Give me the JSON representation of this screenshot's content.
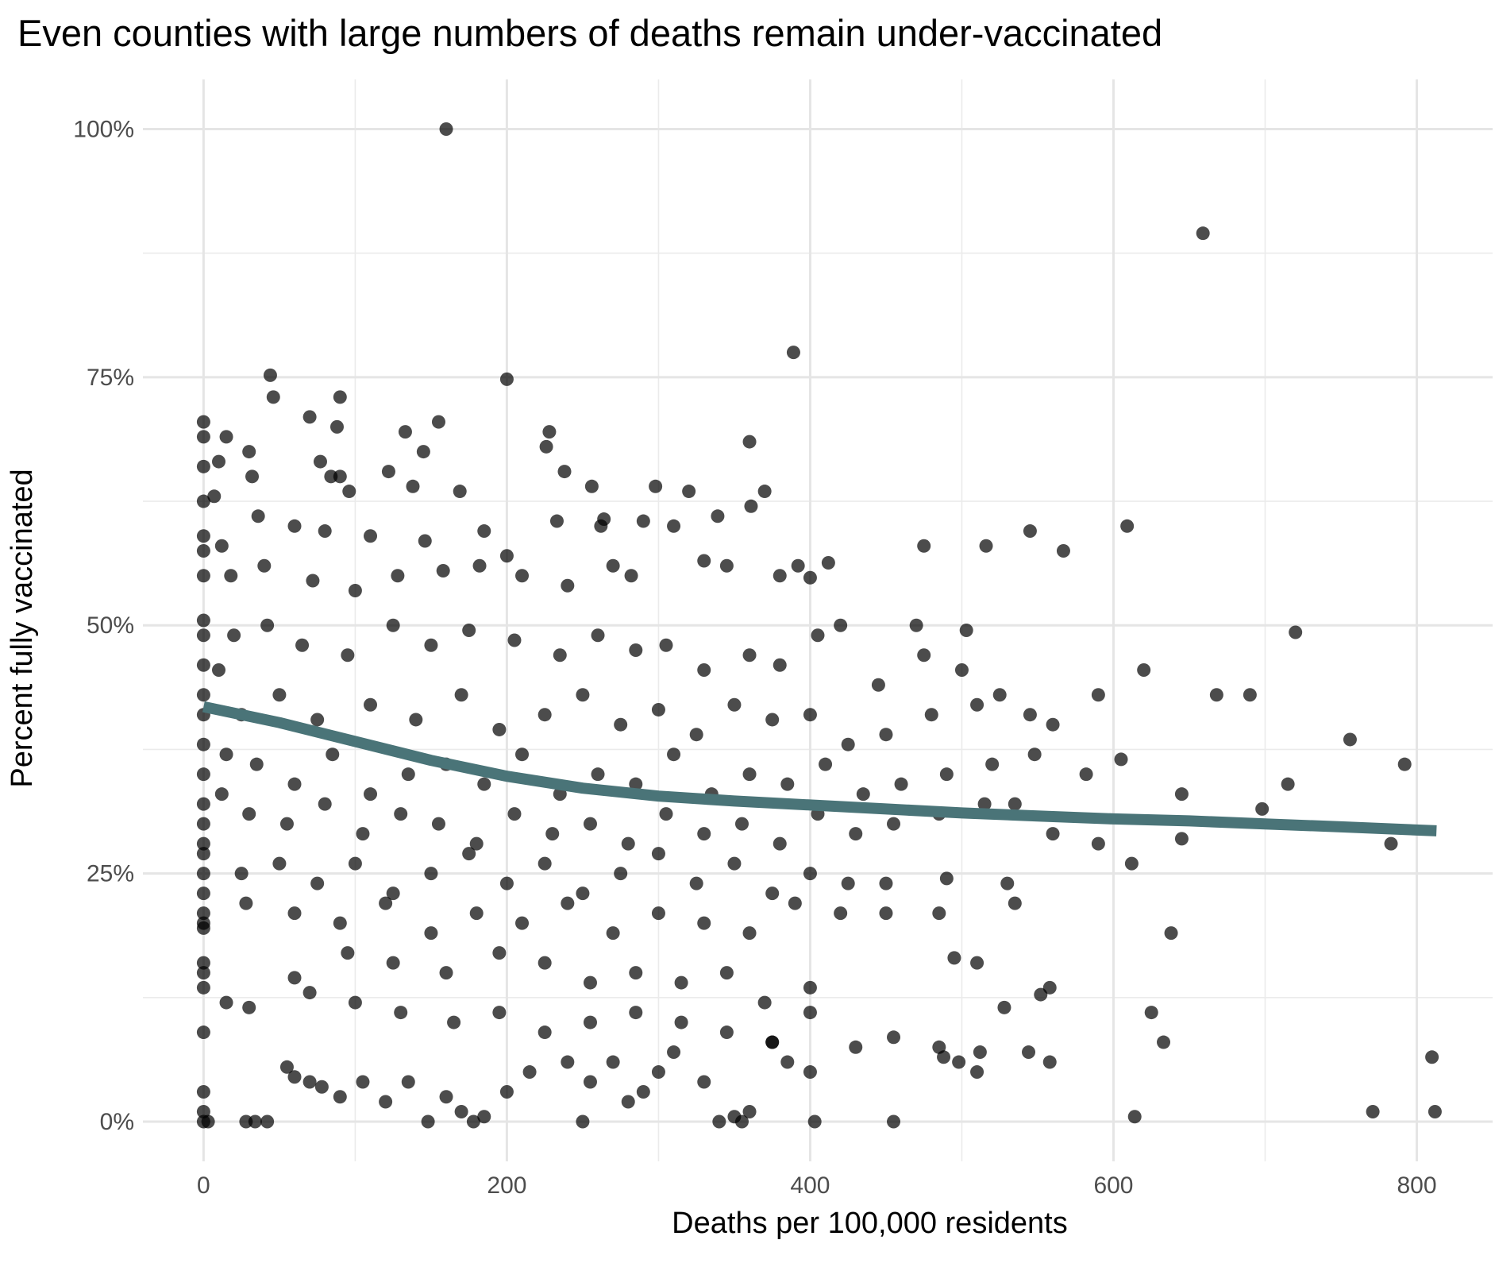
{
  "chart_data": {
    "type": "scatter",
    "title": "Even counties with large numbers of deaths remain under-vaccinated",
    "xlabel": "Deaths per 100,000 residents",
    "ylabel": "Percent fully vaccinated",
    "xlim": [
      -40,
      850
    ],
    "ylim": [
      -4,
      105
    ],
    "x_ticks": [
      0,
      200,
      400,
      600,
      800
    ],
    "x_tick_labels": [
      "0",
      "200",
      "400",
      "600",
      "800"
    ],
    "y_ticks": [
      0,
      25,
      50,
      75,
      100
    ],
    "y_tick_labels": [
      "0%",
      "25%",
      "50%",
      "75%",
      "100%"
    ],
    "grid": true,
    "point_color": "#000000",
    "point_opacity": 0.7,
    "trend_color": "#4a7478",
    "points": [
      [
        160,
        100
      ],
      [
        659,
        89.5
      ],
      [
        389,
        77.5
      ],
      [
        200,
        74.8
      ],
      [
        44,
        75.2
      ],
      [
        46,
        73
      ],
      [
        90,
        73
      ],
      [
        0,
        70.5
      ],
      [
        70,
        71
      ],
      [
        155,
        70.5
      ],
      [
        228,
        69.5
      ],
      [
        0,
        69
      ],
      [
        15,
        69
      ],
      [
        133,
        69.5
      ],
      [
        88,
        70
      ],
      [
        226,
        68
      ],
      [
        360,
        68.5
      ],
      [
        145,
        67.5
      ],
      [
        0,
        66
      ],
      [
        10,
        66.5
      ],
      [
        77,
        66.5
      ],
      [
        30,
        67.5
      ],
      [
        0,
        62.5
      ],
      [
        7,
        63
      ],
      [
        32,
        65
      ],
      [
        84,
        65
      ],
      [
        90,
        65
      ],
      [
        96,
        63.5
      ],
      [
        122,
        65.5
      ],
      [
        138,
        64
      ],
      [
        238,
        65.5
      ],
      [
        256,
        64
      ],
      [
        298,
        64
      ],
      [
        320,
        63.5
      ],
      [
        233,
        60.5
      ],
      [
        264,
        60.7
      ],
      [
        361,
        62
      ],
      [
        370,
        63.5
      ],
      [
        169,
        63.5
      ],
      [
        0,
        59
      ],
      [
        0,
        57.5
      ],
      [
        12,
        58
      ],
      [
        36,
        61
      ],
      [
        60,
        60
      ],
      [
        80,
        59.5
      ],
      [
        110,
        59
      ],
      [
        146,
        58.5
      ],
      [
        185,
        59.5
      ],
      [
        200,
        57
      ],
      [
        262,
        60
      ],
      [
        290,
        60.5
      ],
      [
        310,
        60
      ],
      [
        339,
        61
      ],
      [
        609,
        60
      ],
      [
        516,
        58
      ],
      [
        545,
        59.5
      ],
      [
        567,
        57.5
      ],
      [
        475,
        58
      ],
      [
        0,
        55
      ],
      [
        18,
        55
      ],
      [
        40,
        56
      ],
      [
        72,
        54.5
      ],
      [
        100,
        53.5
      ],
      [
        128,
        55
      ],
      [
        158,
        55.5
      ],
      [
        182,
        56
      ],
      [
        210,
        55
      ],
      [
        240,
        54
      ],
      [
        270,
        56
      ],
      [
        282,
        55
      ],
      [
        330,
        56.5
      ],
      [
        345,
        56
      ],
      [
        380,
        55
      ],
      [
        392,
        56
      ],
      [
        412,
        56.3
      ],
      [
        400,
        54.8
      ],
      [
        0,
        50.5
      ],
      [
        0,
        49
      ],
      [
        0,
        46
      ],
      [
        10,
        45.5
      ],
      [
        20,
        49
      ],
      [
        42,
        50
      ],
      [
        65,
        48
      ],
      [
        95,
        47
      ],
      [
        125,
        50
      ],
      [
        150,
        48
      ],
      [
        175,
        49.5
      ],
      [
        205,
        48.5
      ],
      [
        235,
        47
      ],
      [
        260,
        49
      ],
      [
        285,
        47.5
      ],
      [
        305,
        48
      ],
      [
        330,
        45.5
      ],
      [
        360,
        47
      ],
      [
        380,
        46
      ],
      [
        405,
        49
      ],
      [
        420,
        50
      ],
      [
        470,
        50
      ],
      [
        503,
        49.5
      ],
      [
        590,
        43
      ],
      [
        620,
        45.5
      ],
      [
        668,
        43
      ],
      [
        690,
        43
      ],
      [
        720,
        49.3
      ],
      [
        475,
        47
      ],
      [
        445,
        44
      ],
      [
        500,
        45.5
      ],
      [
        0,
        43
      ],
      [
        0,
        41
      ],
      [
        25,
        41
      ],
      [
        50,
        43
      ],
      [
        75,
        40.5
      ],
      [
        110,
        42
      ],
      [
        140,
        40.5
      ],
      [
        170,
        43
      ],
      [
        195,
        39.5
      ],
      [
        225,
        41
      ],
      [
        250,
        43
      ],
      [
        275,
        40
      ],
      [
        300,
        41.5
      ],
      [
        325,
        39
      ],
      [
        350,
        42
      ],
      [
        375,
        40.5
      ],
      [
        400,
        41
      ],
      [
        425,
        38
      ],
      [
        450,
        39
      ],
      [
        480,
        41
      ],
      [
        510,
        42
      ],
      [
        525,
        43
      ],
      [
        545,
        41
      ],
      [
        560,
        40
      ],
      [
        0,
        38
      ],
      [
        0,
        35
      ],
      [
        15,
        37
      ],
      [
        35,
        36
      ],
      [
        60,
        34
      ],
      [
        85,
        37
      ],
      [
        110,
        33
      ],
      [
        135,
        35
      ],
      [
        160,
        36
      ],
      [
        185,
        34
      ],
      [
        210,
        37
      ],
      [
        235,
        33
      ],
      [
        260,
        35
      ],
      [
        285,
        34
      ],
      [
        310,
        37
      ],
      [
        335,
        33
      ],
      [
        360,
        35
      ],
      [
        385,
        34
      ],
      [
        410,
        36
      ],
      [
        435,
        33
      ],
      [
        460,
        34
      ],
      [
        490,
        35
      ],
      [
        520,
        36
      ],
      [
        548,
        37
      ],
      [
        582,
        35
      ],
      [
        605,
        36.5
      ],
      [
        756,
        38.5
      ],
      [
        792,
        36
      ],
      [
        715,
        34
      ],
      [
        645,
        33
      ],
      [
        0,
        32
      ],
      [
        0,
        30
      ],
      [
        0,
        28
      ],
      [
        12,
        33
      ],
      [
        30,
        31
      ],
      [
        55,
        30
      ],
      [
        80,
        32
      ],
      [
        105,
        29
      ],
      [
        130,
        31
      ],
      [
        155,
        30
      ],
      [
        180,
        28
      ],
      [
        205,
        31
      ],
      [
        230,
        29
      ],
      [
        255,
        30
      ],
      [
        280,
        28
      ],
      [
        305,
        31
      ],
      [
        330,
        29
      ],
      [
        355,
        30
      ],
      [
        380,
        28
      ],
      [
        405,
        31
      ],
      [
        430,
        29
      ],
      [
        455,
        30
      ],
      [
        485,
        31
      ],
      [
        515,
        32
      ],
      [
        535,
        32
      ],
      [
        560,
        29
      ],
      [
        590,
        28
      ],
      [
        612,
        26
      ],
      [
        645,
        28.5
      ],
      [
        698,
        31.5
      ],
      [
        783,
        28
      ],
      [
        0,
        27
      ],
      [
        0,
        25
      ],
      [
        0,
        23
      ],
      [
        25,
        25
      ],
      [
        50,
        26
      ],
      [
        75,
        24
      ],
      [
        100,
        26
      ],
      [
        125,
        23
      ],
      [
        150,
        25
      ],
      [
        175,
        27
      ],
      [
        200,
        24
      ],
      [
        225,
        26
      ],
      [
        250,
        23
      ],
      [
        275,
        25
      ],
      [
        300,
        27
      ],
      [
        325,
        24
      ],
      [
        350,
        26
      ],
      [
        375,
        23
      ],
      [
        400,
        25
      ],
      [
        425,
        24
      ],
      [
        450,
        24
      ],
      [
        490,
        24.5
      ],
      [
        530,
        24
      ],
      [
        0,
        21
      ],
      [
        0,
        20
      ],
      [
        0,
        19.5
      ],
      [
        28,
        22
      ],
      [
        60,
        21
      ],
      [
        90,
        20
      ],
      [
        120,
        22
      ],
      [
        150,
        19
      ],
      [
        180,
        21
      ],
      [
        210,
        20
      ],
      [
        240,
        22
      ],
      [
        270,
        19
      ],
      [
        300,
        21
      ],
      [
        330,
        20
      ],
      [
        360,
        19
      ],
      [
        390,
        22
      ],
      [
        420,
        21
      ],
      [
        450,
        21
      ],
      [
        485,
        21
      ],
      [
        535,
        22
      ],
      [
        638,
        19
      ],
      [
        0,
        16
      ],
      [
        0,
        15
      ],
      [
        0,
        13.5
      ],
      [
        60,
        14.5
      ],
      [
        95,
        17
      ],
      [
        125,
        16
      ],
      [
        160,
        15
      ],
      [
        195,
        17
      ],
      [
        225,
        16
      ],
      [
        255,
        14
      ],
      [
        285,
        15
      ],
      [
        315,
        14
      ],
      [
        345,
        15
      ],
      [
        370,
        12
      ],
      [
        400,
        13.5
      ],
      [
        495,
        16.5
      ],
      [
        510,
        16
      ],
      [
        558,
        13.5
      ],
      [
        552,
        12.8
      ],
      [
        0,
        9
      ],
      [
        15,
        12
      ],
      [
        30,
        11.5
      ],
      [
        70,
        13
      ],
      [
        100,
        12
      ],
      [
        130,
        11
      ],
      [
        165,
        10
      ],
      [
        195,
        11
      ],
      [
        225,
        9
      ],
      [
        255,
        10
      ],
      [
        285,
        11
      ],
      [
        315,
        10
      ],
      [
        345,
        9
      ],
      [
        375,
        8
      ],
      [
        400,
        11
      ],
      [
        455,
        8.5
      ],
      [
        528,
        11.5
      ],
      [
        625,
        11
      ],
      [
        633,
        8
      ],
      [
        0,
        3
      ],
      [
        0,
        1
      ],
      [
        0,
        0
      ],
      [
        3,
        0
      ],
      [
        28,
        0
      ],
      [
        34,
        0
      ],
      [
        42,
        0
      ],
      [
        55,
        5.5
      ],
      [
        60,
        4.5
      ],
      [
        70,
        4
      ],
      [
        78,
        3.5
      ],
      [
        90,
        2.5
      ],
      [
        105,
        4
      ],
      [
        120,
        2
      ],
      [
        135,
        4
      ],
      [
        160,
        2.5
      ],
      [
        170,
        1
      ],
      [
        178,
        0
      ],
      [
        185,
        0.5
      ],
      [
        200,
        3
      ],
      [
        215,
        5
      ],
      [
        240,
        6
      ],
      [
        255,
        4
      ],
      [
        270,
        6
      ],
      [
        280,
        2
      ],
      [
        290,
        3
      ],
      [
        300,
        5
      ],
      [
        310,
        7
      ],
      [
        330,
        4
      ],
      [
        340,
        0
      ],
      [
        350,
        0.5
      ],
      [
        355,
        0
      ],
      [
        360,
        1
      ],
      [
        375,
        8
      ],
      [
        385,
        6
      ],
      [
        400,
        5
      ],
      [
        403,
        0
      ],
      [
        430,
        7.5
      ],
      [
        455,
        0
      ],
      [
        485,
        7.5
      ],
      [
        488,
        6.5
      ],
      [
        498,
        6
      ],
      [
        510,
        5
      ],
      [
        512,
        7
      ],
      [
        544,
        7
      ],
      [
        558,
        6
      ],
      [
        614,
        0.5
      ],
      [
        771,
        1
      ],
      [
        810,
        6.5
      ],
      [
        812,
        1
      ],
      [
        148,
        0
      ],
      [
        250,
        0
      ]
    ],
    "trend": {
      "x": [
        0,
        50,
        100,
        150,
        200,
        250,
        300,
        350,
        400,
        450,
        500,
        550,
        600,
        650,
        700,
        750,
        813
      ],
      "y": [
        41.8,
        40.2,
        38.3,
        36.4,
        34.8,
        33.6,
        32.8,
        32.3,
        31.9,
        31.5,
        31.1,
        30.8,
        30.5,
        30.3,
        30.0,
        29.7,
        29.3
      ]
    }
  }
}
